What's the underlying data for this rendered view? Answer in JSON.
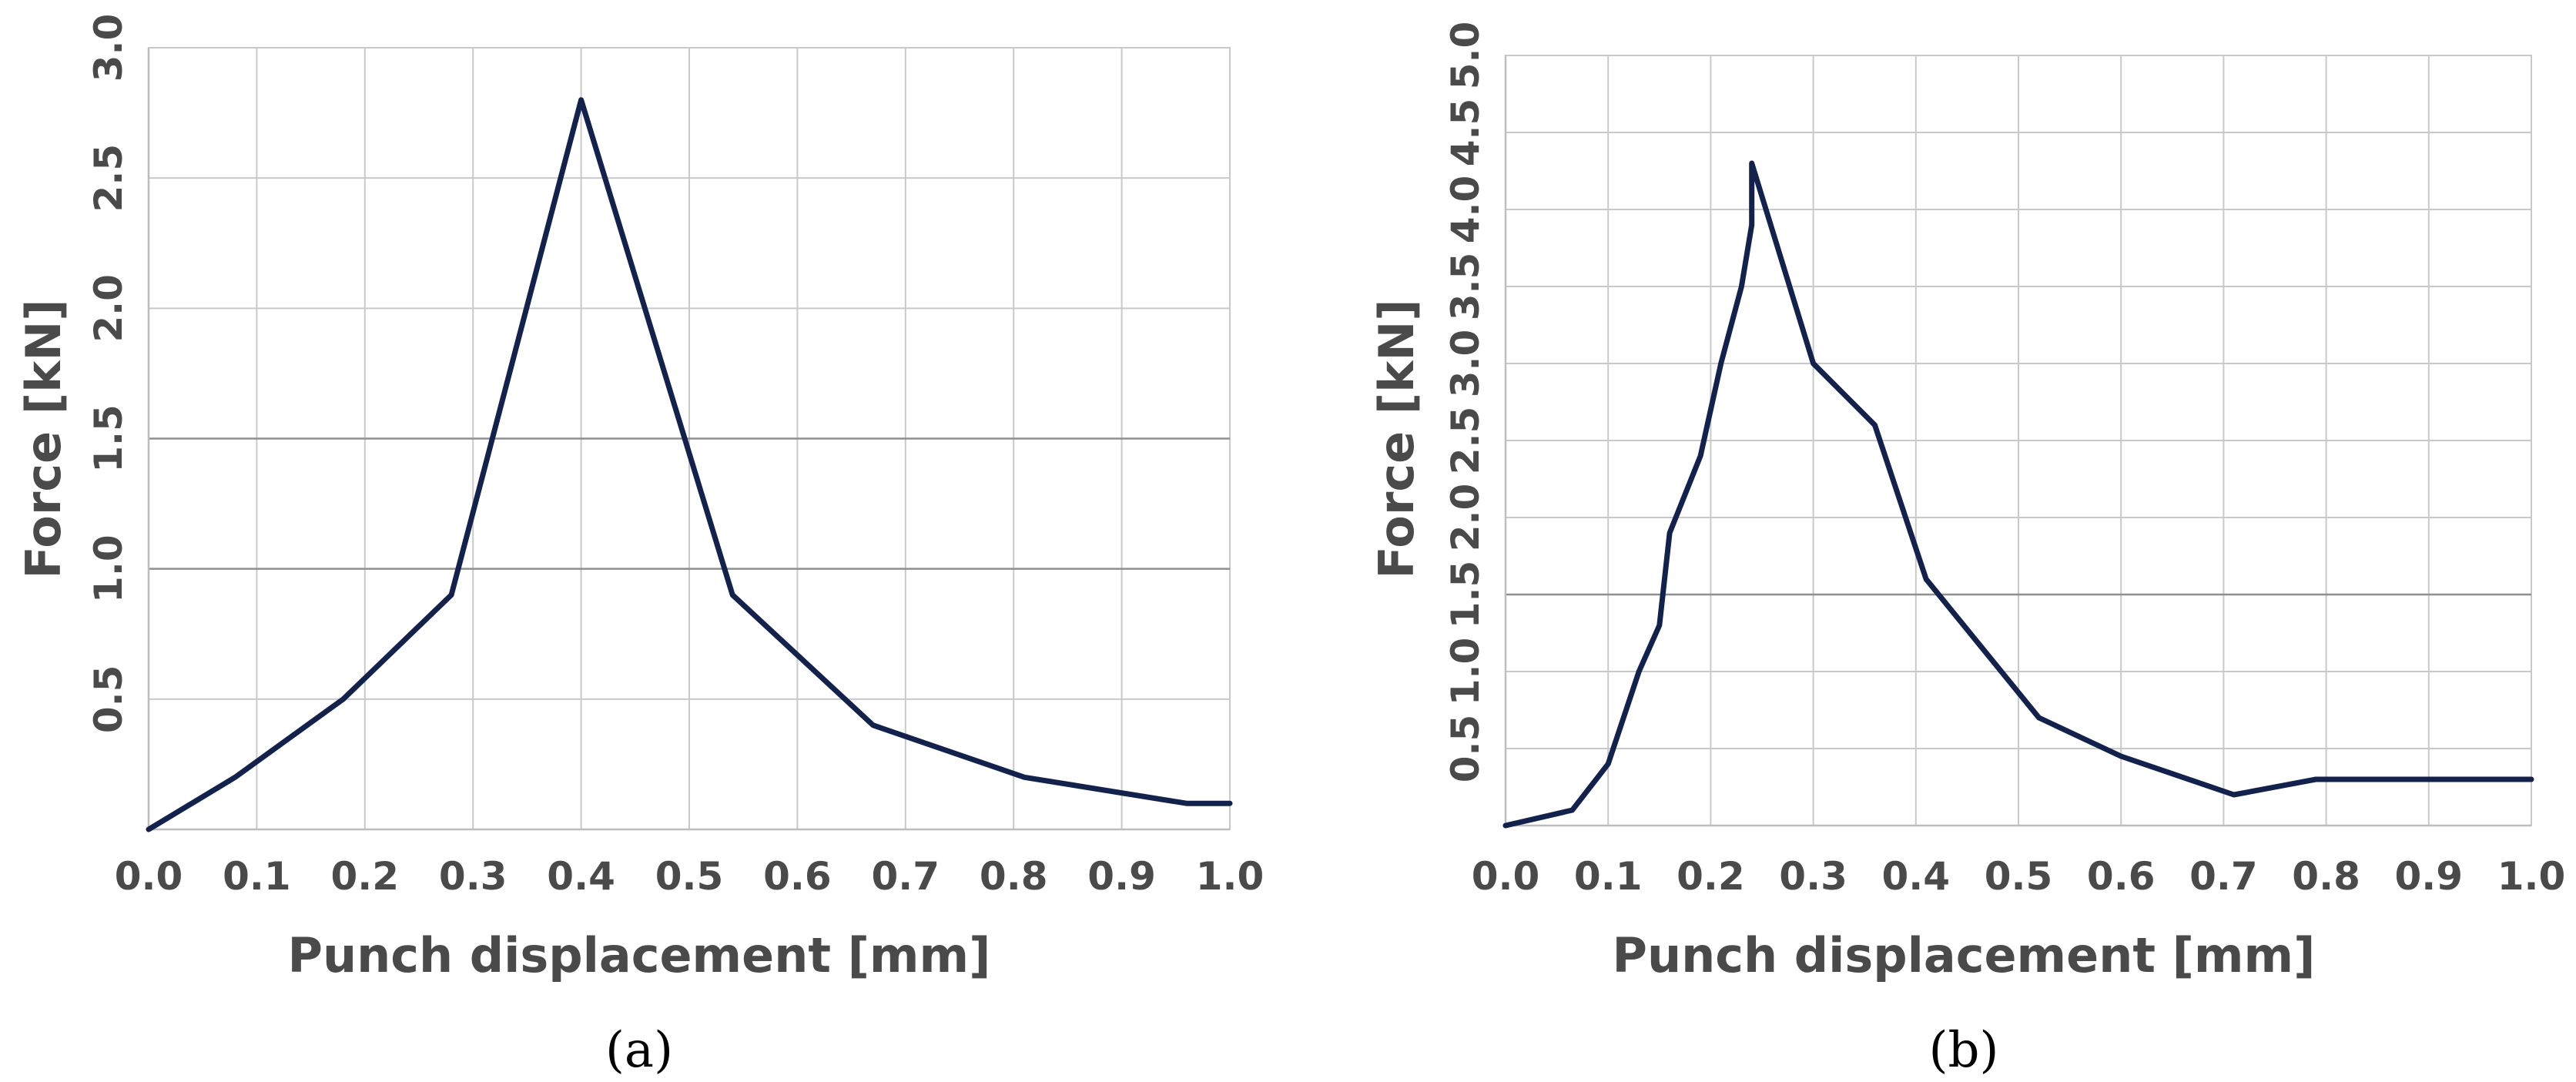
{
  "chart_data": [
    {
      "type": "line",
      "panel_label": "(a)",
      "xlabel": "Punch displacement [mm]",
      "ylabel": "Force [kN]",
      "xlim": [
        0.0,
        1.0
      ],
      "ylim": [
        0.0,
        3.0
      ],
      "x_ticks": [
        "0.0",
        "0.1",
        "0.2",
        "0.3",
        "0.4",
        "0.5",
        "0.6",
        "0.7",
        "0.8",
        "0.9",
        "1.0"
      ],
      "y_ticks": [
        "0.5",
        "1.0",
        "1.5",
        "2.0",
        "2.5",
        "3.0"
      ],
      "major_y_gridlines": [
        1.0,
        1.5
      ],
      "grid": true,
      "line_color": "#13224d",
      "series": [
        {
          "x": [
            0.0,
            0.08,
            0.18,
            0.28,
            0.4,
            0.54,
            0.67,
            0.81,
            0.96,
            1.0
          ],
          "y": [
            0.0,
            0.2,
            0.5,
            0.9,
            2.8,
            0.9,
            0.4,
            0.2,
            0.1,
            0.1
          ]
        }
      ]
    },
    {
      "type": "line",
      "panel_label": "(b)",
      "xlabel": "Punch displacement [mm]",
      "ylabel": "Force [kN]",
      "xlim": [
        0.0,
        1.0
      ],
      "ylim": [
        0.0,
        5.0
      ],
      "x_ticks": [
        "0.0",
        "0.1",
        "0.2",
        "0.3",
        "0.4",
        "0.5",
        "0.6",
        "0.7",
        "0.8",
        "0.9",
        "1.0"
      ],
      "y_ticks": [
        "0.5",
        "1.0",
        "1.5",
        "2.0",
        "2.5",
        "3.0",
        "3.5",
        "4.0",
        "4.5",
        "5.0"
      ],
      "major_y_gridlines": [
        1.5
      ],
      "grid": true,
      "line_color": "#13224d",
      "series": [
        {
          "x": [
            0.0,
            0.065,
            0.1,
            0.13,
            0.15,
            0.16,
            0.19,
            0.21,
            0.23,
            0.24,
            0.24,
            0.3,
            0.36,
            0.41,
            0.52,
            0.6,
            0.71,
            0.79,
            1.0
          ],
          "y": [
            0.0,
            0.1,
            0.4,
            1.0,
            1.3,
            1.9,
            2.4,
            3.0,
            3.5,
            3.9,
            4.3,
            3.0,
            2.6,
            1.6,
            0.7,
            0.45,
            0.2,
            0.3,
            0.3
          ]
        }
      ]
    }
  ]
}
